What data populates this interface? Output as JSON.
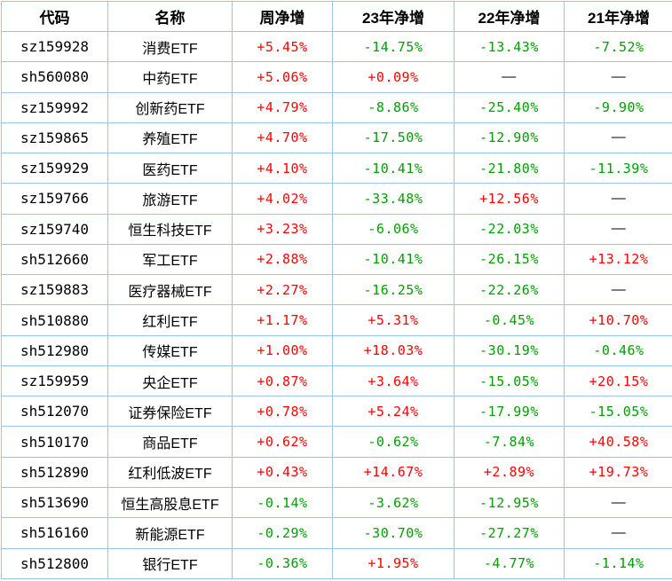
{
  "chart_data": {
    "type": "table",
    "title": "",
    "headers": [
      "代码",
      "名称",
      "周净增",
      "23年净增",
      "22年净增",
      "21年净增"
    ],
    "rows": [
      [
        "sz159928",
        "消费ETF",
        "+5.45%",
        "-14.75%",
        "-13.43%",
        "-7.52%"
      ],
      [
        "sh560080",
        "中药ETF",
        "+5.06%",
        "+0.09%",
        "—",
        "—"
      ],
      [
        "sz159992",
        "创新药ETF",
        "+4.79%",
        "-8.86%",
        "-25.40%",
        "-9.90%"
      ],
      [
        "sz159865",
        "养殖ETF",
        "+4.70%",
        "-17.50%",
        "-12.90%",
        "—"
      ],
      [
        "sz159929",
        "医药ETF",
        "+4.10%",
        "-10.41%",
        "-21.80%",
        "-11.39%"
      ],
      [
        "sz159766",
        "旅游ETF",
        "+4.02%",
        "-33.48%",
        "+12.56%",
        "—"
      ],
      [
        "sz159740",
        "恒生科技ETF",
        "+3.23%",
        "-6.06%",
        "-22.03%",
        "—"
      ],
      [
        "sh512660",
        "军工ETF",
        "+2.88%",
        "-10.41%",
        "-26.15%",
        "+13.12%"
      ],
      [
        "sz159883",
        "医疗器械ETF",
        "+2.27%",
        "-16.25%",
        "-22.26%",
        "—"
      ],
      [
        "sh510880",
        "红利ETF",
        "+1.17%",
        "+5.31%",
        "-0.45%",
        "+10.70%"
      ],
      [
        "sh512980",
        "传媒ETF",
        "+1.00%",
        "+18.03%",
        "-30.19%",
        "-0.46%"
      ],
      [
        "sz159959",
        "央企ETF",
        "+0.87%",
        "+3.64%",
        "-15.05%",
        "+20.15%"
      ],
      [
        "sh512070",
        "证券保险ETF",
        "+0.78%",
        "+5.24%",
        "-17.99%",
        "-15.05%"
      ],
      [
        "sh510170",
        "商品ETF",
        "+0.62%",
        "-0.62%",
        "-7.84%",
        "+40.58%"
      ],
      [
        "sh512890",
        "红利低波ETF",
        "+0.43%",
        "+14.67%",
        "+2.89%",
        "+19.73%"
      ],
      [
        "sh513690",
        "恒生高股息ETF",
        "-0.14%",
        "-3.62%",
        "-12.95%",
        "—"
      ],
      [
        "sh516160",
        "新能源ETF",
        "-0.29%",
        "-30.70%",
        "-27.27%",
        "—"
      ],
      [
        "sh512800",
        "银行ETF",
        "-0.36%",
        "+1.95%",
        "-4.77%",
        "-1.14%"
      ]
    ]
  },
  "colors": {
    "positive": "#ff0000",
    "negative": "#00a000",
    "neutral": "#000000",
    "border": "#9dc3e6",
    "header_text": "#000000"
  }
}
